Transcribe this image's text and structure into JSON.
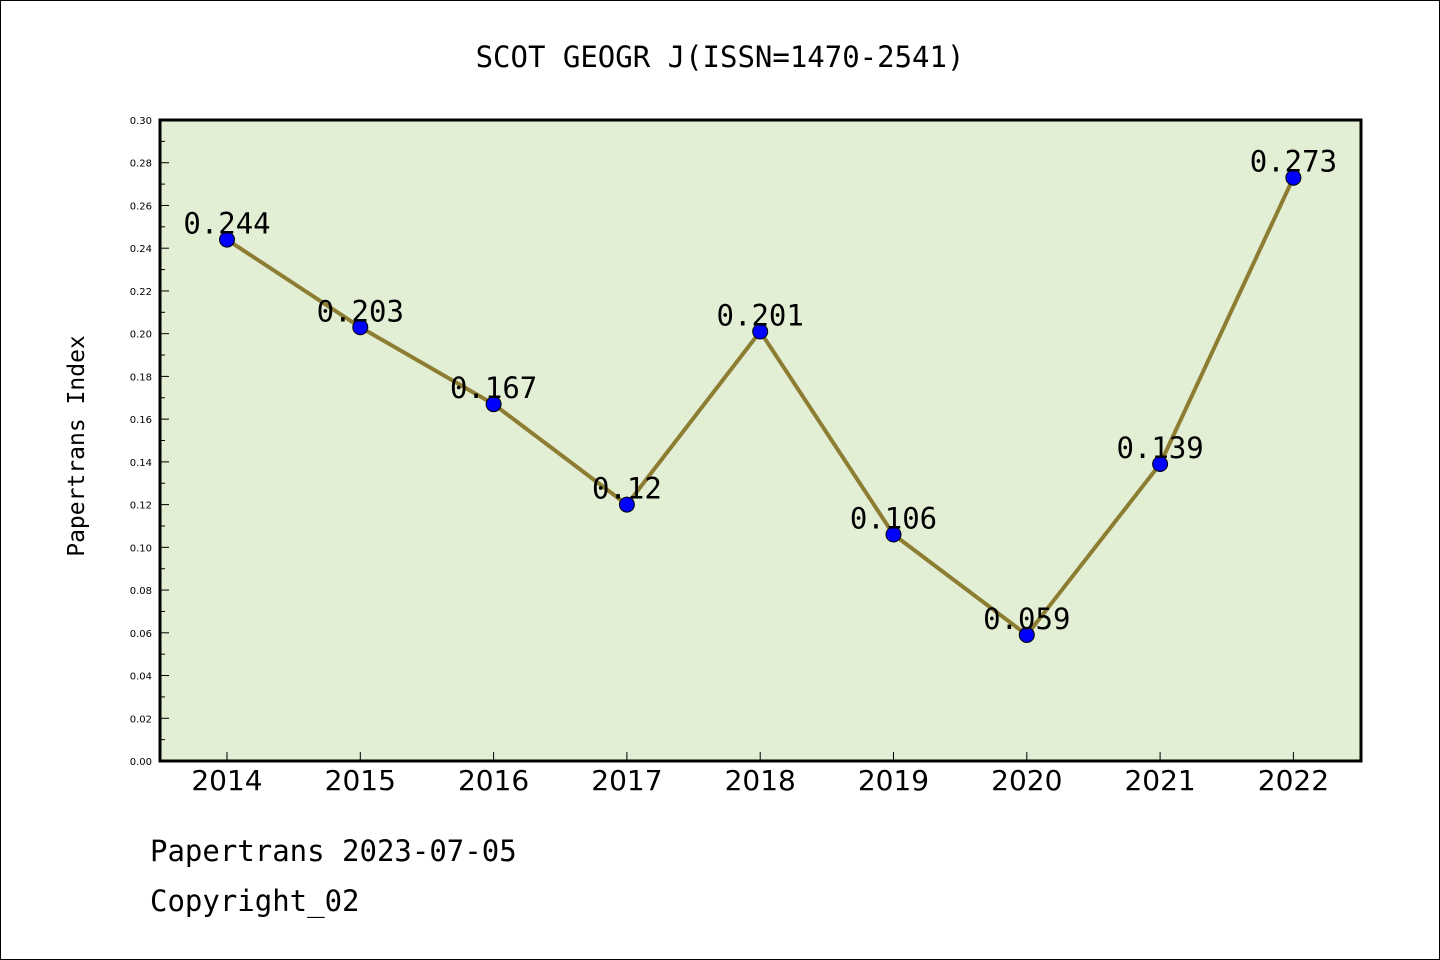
{
  "chart_data": {
    "type": "line",
    "title": "SCOT GEOGR J(ISSN=1470-2541)",
    "xlabel": "",
    "ylabel": "Papertrans Index",
    "categories": [
      "2014",
      "2015",
      "2016",
      "2017",
      "2018",
      "2019",
      "2020",
      "2021",
      "2022"
    ],
    "values": [
      0.244,
      0.203,
      0.167,
      0.12,
      0.201,
      0.106,
      0.059,
      0.139,
      0.273
    ],
    "value_labels": [
      "0.244",
      "0.203",
      "0.167",
      "0.12",
      "0.201",
      "0.106",
      "0.059",
      "0.139",
      "0.273"
    ],
    "ylim": [
      0,
      0.3
    ],
    "yticks": [
      "0.00",
      "0.02",
      "0.04",
      "0.06",
      "0.08",
      "0.10",
      "0.12",
      "0.14",
      "0.16",
      "0.18",
      "0.20",
      "0.22",
      "0.24",
      "0.26",
      "0.28",
      "0.30"
    ],
    "grid": false,
    "colors": {
      "plot_background": "#e2efd5",
      "line": "#8c7d32",
      "marker": "#0000ff"
    }
  },
  "footer": {
    "line1": "Papertrans 2023-07-05",
    "line2": "Copyright_02"
  }
}
